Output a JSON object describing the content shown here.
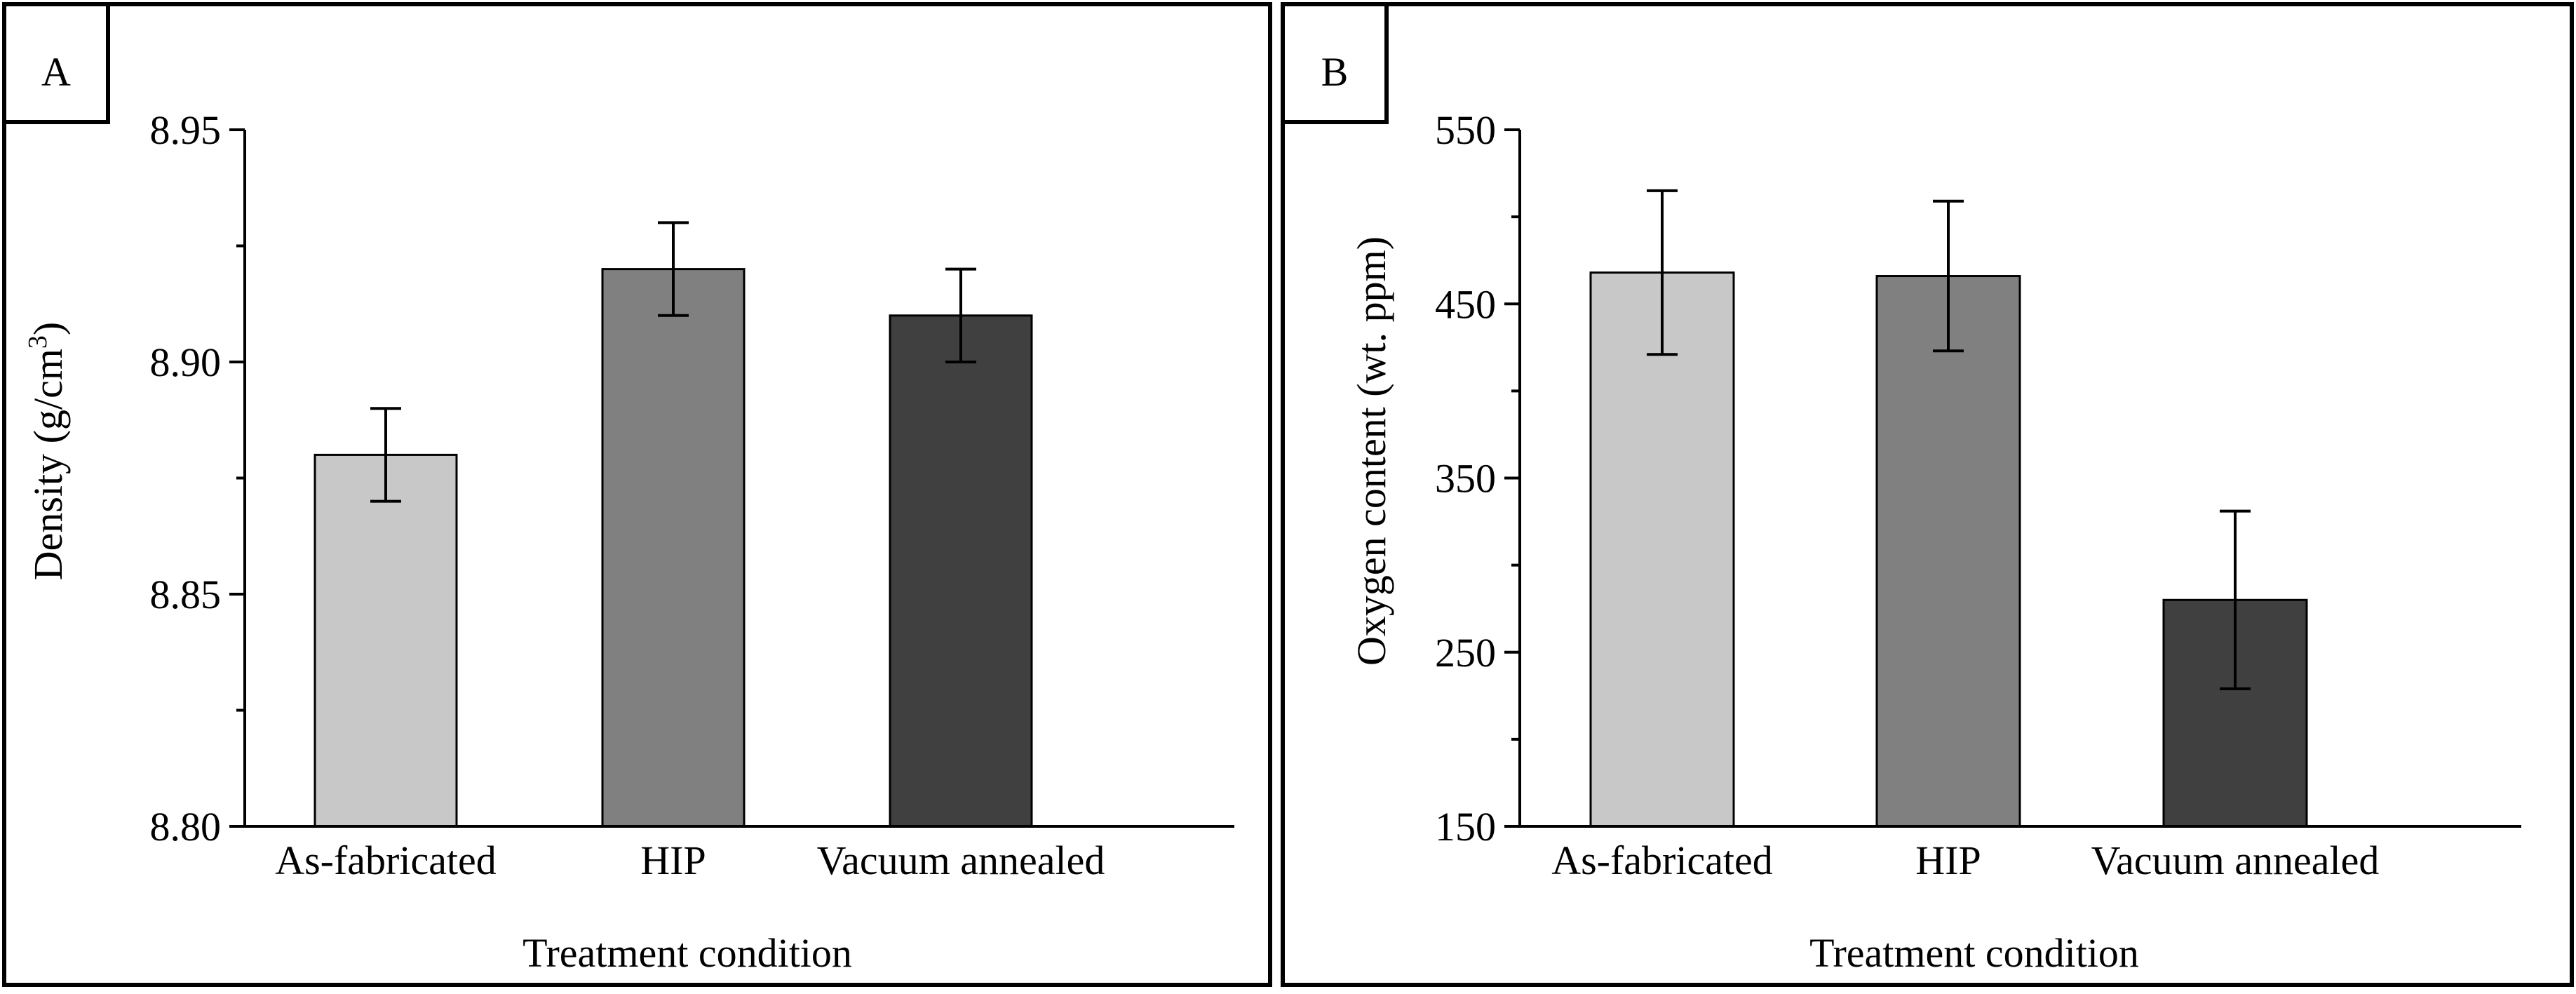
{
  "chart_data": [
    {
      "type": "bar",
      "panel_label": "A",
      "categories": [
        "As-fabricated",
        "HIP",
        "Vacuum annealed"
      ],
      "values": [
        8.88,
        8.92,
        8.91
      ],
      "errors": [
        0.01,
        0.01,
        0.01
      ],
      "colors": [
        "#c8c8c8",
        "#808080",
        "#404040"
      ],
      "xlabel": "Treatment condition",
      "ylabel_main": "Density (g/cm",
      "ylabel_sup": "3",
      "ylabel_end": ")",
      "ylim": [
        8.8,
        8.95
      ],
      "yticks": [
        "8.80",
        "8.85",
        "8.90",
        "8.95"
      ],
      "ytick_values": [
        8.8,
        8.85,
        8.9,
        8.95
      ],
      "minor_step": 0.025
    },
    {
      "type": "bar",
      "panel_label": "B",
      "categories": [
        "As-fabricated",
        "HIP",
        "Vacuum annealed"
      ],
      "values": [
        468,
        466,
        280
      ],
      "errors": [
        47,
        43,
        51
      ],
      "colors": [
        "#c8c8c8",
        "#808080",
        "#404040"
      ],
      "xlabel": "Treatment condition",
      "ylabel_main": "Oxygen content (wt. ppm)",
      "ylabel_sup": "",
      "ylabel_end": "",
      "ylim": [
        150,
        550
      ],
      "yticks": [
        "150",
        "250",
        "350",
        "450",
        "550"
      ],
      "ytick_values": [
        150,
        250,
        350,
        450,
        550
      ],
      "minor_step": 50
    }
  ]
}
